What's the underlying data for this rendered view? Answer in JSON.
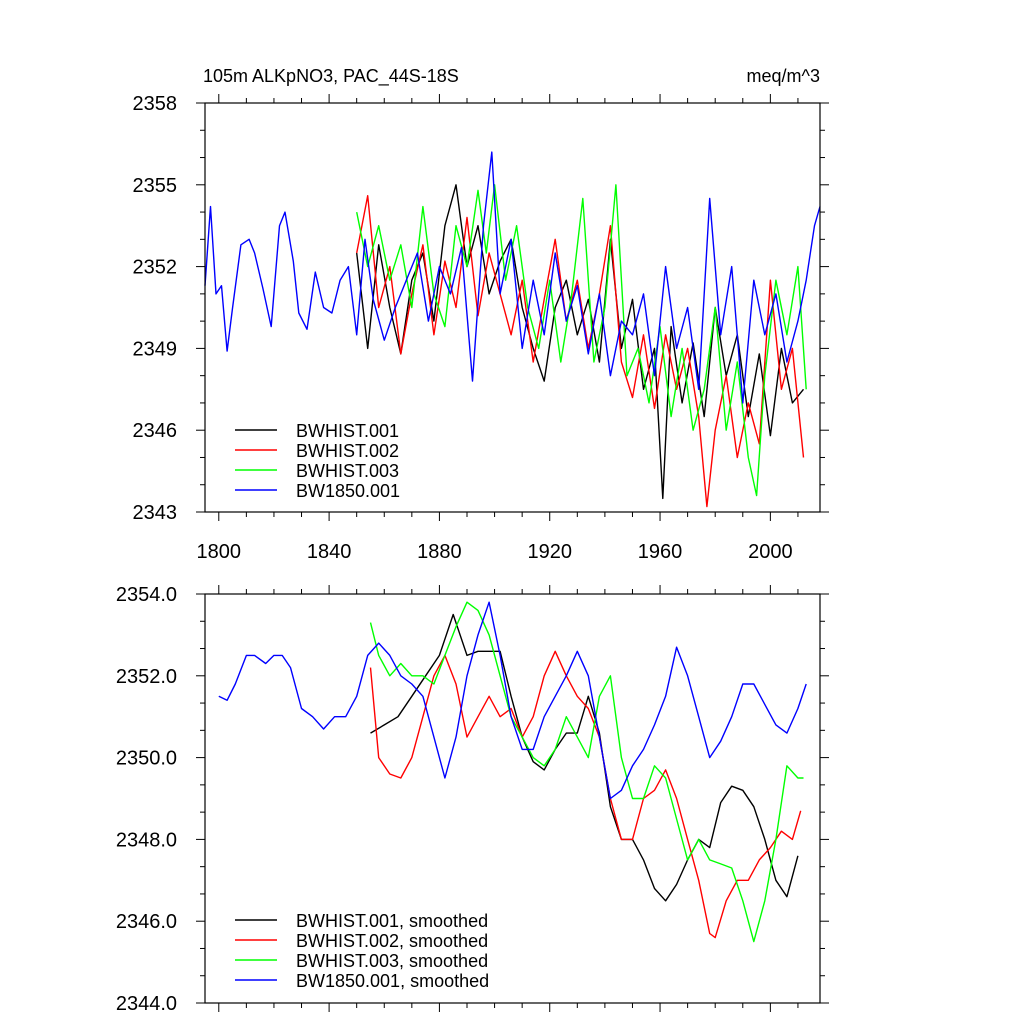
{
  "chart_data": [
    {
      "type": "line",
      "title": "105m ALKpNO3, PAC_44S-18S",
      "units": "meq/m^3",
      "xlabel": "",
      "ylabel": "",
      "xlim": [
        1795,
        2018
      ],
      "ylim": [
        2343,
        2358
      ],
      "x_ticks": [
        1800,
        1840,
        1880,
        1920,
        1960,
        2000
      ],
      "x_tick_labels": [
        "1800",
        "1840",
        "1880",
        "1920",
        "1960",
        "2000"
      ],
      "y_ticks": [
        2343,
        2346,
        2349,
        2352,
        2355,
        2358
      ],
      "y_tick_labels": [
        "2343",
        "2346",
        "2349",
        "2352",
        "2355",
        "2358"
      ],
      "legend_position": "bottom-left",
      "series": [
        {
          "name": "BWHIST.001",
          "color": "#000000",
          "x": [
            1850,
            1854,
            1858,
            1862,
            1866,
            1870,
            1874,
            1878,
            1882,
            1886,
            1890,
            1894,
            1898,
            1902,
            1906,
            1910,
            1914,
            1918,
            1922,
            1926,
            1930,
            1934,
            1938,
            1942,
            1946,
            1950,
            1954,
            1958,
            1961,
            1964,
            1968,
            1972,
            1976,
            1980,
            1984,
            1988,
            1992,
            1996,
            2000,
            2004,
            2008,
            2012
          ],
          "y": [
            2352.5,
            2349.0,
            2352.8,
            2350.5,
            2348.8,
            2351.5,
            2352.5,
            2350.0,
            2353.5,
            2355.0,
            2352.0,
            2353.5,
            2351.0,
            2352.2,
            2353.0,
            2350.5,
            2349.0,
            2347.8,
            2350.5,
            2351.5,
            2349.5,
            2350.8,
            2348.5,
            2353.0,
            2349.0,
            2350.8,
            2347.5,
            2349.0,
            2343.5,
            2349.8,
            2347.0,
            2349.2,
            2346.5,
            2350.5,
            2348.0,
            2349.5,
            2346.5,
            2348.8,
            2345.8,
            2349.0,
            2347.0,
            2347.5
          ]
        },
        {
          "name": "BWHIST.002",
          "color": "#ff0000",
          "x": [
            1850,
            1854,
            1858,
            1862,
            1866,
            1870,
            1874,
            1878,
            1882,
            1886,
            1890,
            1894,
            1898,
            1902,
            1906,
            1910,
            1914,
            1918,
            1922,
            1926,
            1930,
            1934,
            1938,
            1942,
            1946,
            1950,
            1954,
            1958,
            1962,
            1966,
            1970,
            1974,
            1977,
            1980,
            1984,
            1988,
            1992,
            1996,
            2000,
            2004,
            2008,
            2012
          ],
          "y": [
            2352.5,
            2354.6,
            2350.5,
            2352.0,
            2348.8,
            2351.0,
            2352.8,
            2349.5,
            2352.2,
            2350.5,
            2353.8,
            2350.2,
            2352.5,
            2351.0,
            2349.5,
            2351.5,
            2348.5,
            2350.8,
            2353.0,
            2350.0,
            2351.5,
            2349.0,
            2351.0,
            2353.5,
            2348.5,
            2347.2,
            2349.5,
            2346.8,
            2349.5,
            2347.5,
            2349.0,
            2346.5,
            2343.2,
            2346.0,
            2348.0,
            2345.0,
            2347.0,
            2345.5,
            2351.5,
            2347.5,
            2349.0,
            2345.0
          ]
        },
        {
          "name": "BWHIST.003",
          "color": "#00ff00",
          "x": [
            1850,
            1854,
            1858,
            1862,
            1866,
            1870,
            1874,
            1878,
            1882,
            1886,
            1890,
            1894,
            1897,
            1900,
            1904,
            1908,
            1912,
            1916,
            1920,
            1924,
            1928,
            1932,
            1936,
            1940,
            1944,
            1948,
            1952,
            1956,
            1960,
            1964,
            1968,
            1972,
            1976,
            1980,
            1984,
            1988,
            1992,
            1995,
            1998,
            2002,
            2006,
            2010,
            2013
          ],
          "y": [
            2354.0,
            2352.0,
            2353.5,
            2351.5,
            2352.8,
            2350.5,
            2354.2,
            2351.0,
            2349.8,
            2353.5,
            2352.0,
            2354.8,
            2352.5,
            2355.0,
            2351.5,
            2353.5,
            2350.5,
            2349.0,
            2351.5,
            2348.5,
            2351.0,
            2354.5,
            2348.5,
            2350.5,
            2355.0,
            2348.0,
            2349.0,
            2347.0,
            2349.8,
            2346.5,
            2349.0,
            2346.0,
            2347.5,
            2350.5,
            2346.0,
            2348.5,
            2345.0,
            2343.6,
            2348.0,
            2351.5,
            2349.5,
            2352.0,
            2347.5
          ]
        },
        {
          "name": "BW1850.001",
          "color": "#0000ff",
          "x": [
            1795,
            1797,
            1799,
            1801,
            1803,
            1805,
            1808,
            1811,
            1813,
            1816,
            1819,
            1822,
            1824,
            1827,
            1829,
            1832,
            1835,
            1838,
            1841,
            1844,
            1847,
            1850,
            1853,
            1856,
            1860,
            1864,
            1868,
            1872,
            1876,
            1880,
            1884,
            1888,
            1892,
            1896,
            1899,
            1902,
            1906,
            1910,
            1914,
            1918,
            1922,
            1926,
            1930,
            1934,
            1938,
            1942,
            1946,
            1950,
            1954,
            1958,
            1962,
            1966,
            1970,
            1974,
            1978,
            1982,
            1986,
            1990,
            1994,
            1998,
            2002,
            2006,
            2010,
            2013,
            2016,
            2018
          ],
          "y": [
            2351.3,
            2354.2,
            2351.0,
            2351.3,
            2348.9,
            2350.5,
            2352.8,
            2353.0,
            2352.5,
            2351.2,
            2349.8,
            2353.5,
            2354.0,
            2352.2,
            2350.3,
            2349.7,
            2351.8,
            2350.5,
            2350.3,
            2351.5,
            2352.0,
            2349.5,
            2353.0,
            2350.8,
            2349.3,
            2350.5,
            2351.5,
            2352.5,
            2350.0,
            2352.0,
            2351.0,
            2352.7,
            2347.8,
            2353.5,
            2356.2,
            2351.0,
            2353.0,
            2349.0,
            2351.5,
            2349.5,
            2352.5,
            2350.0,
            2351.3,
            2348.8,
            2351.0,
            2348.0,
            2350.0,
            2349.5,
            2351.0,
            2348.0,
            2352.0,
            2349.0,
            2350.5,
            2347.5,
            2354.5,
            2349.5,
            2352.0,
            2347.0,
            2351.5,
            2349.5,
            2351.0,
            2348.5,
            2350.0,
            2351.5,
            2353.5,
            2354.2
          ]
        }
      ]
    },
    {
      "type": "line",
      "title": "",
      "xlabel": "",
      "ylabel": "",
      "xlim": [
        1795,
        2018
      ],
      "ylim": [
        2344,
        2354
      ],
      "x_ticks": [
        1800,
        1840,
        1880,
        1920,
        1960,
        2000
      ],
      "y_ticks": [
        2344,
        2346,
        2348,
        2350,
        2352,
        2354
      ],
      "y_tick_labels": [
        "2344.0",
        "2346.0",
        "2348.0",
        "2350.0",
        "2352.0",
        "2354.0"
      ],
      "legend_position": "bottom-left",
      "series": [
        {
          "name": "BWHIST.001, smoothed",
          "color": "#000000",
          "x": [
            1855,
            1860,
            1865,
            1870,
            1875,
            1880,
            1885,
            1890,
            1894,
            1898,
            1902,
            1906,
            1910,
            1914,
            1918,
            1922,
            1926,
            1930,
            1934,
            1938,
            1942,
            1946,
            1950,
            1954,
            1958,
            1962,
            1966,
            1970,
            1974,
            1978,
            1982,
            1986,
            1990,
            1994,
            1998,
            2002,
            2006,
            2010
          ],
          "y": [
            2350.6,
            2350.8,
            2351.0,
            2351.5,
            2352.0,
            2352.5,
            2353.5,
            2352.5,
            2352.6,
            2352.6,
            2352.6,
            2351.5,
            2350.5,
            2349.9,
            2349.7,
            2350.2,
            2350.6,
            2350.6,
            2351.5,
            2350.6,
            2348.8,
            2348.0,
            2348.0,
            2347.5,
            2346.8,
            2346.5,
            2346.9,
            2347.5,
            2348.0,
            2347.8,
            2348.9,
            2349.3,
            2349.2,
            2348.8,
            2348.0,
            2347.0,
            2346.6,
            2347.6
          ]
        },
        {
          "name": "BWHIST.002, smoothed",
          "color": "#ff0000",
          "x": [
            1855,
            1858,
            1862,
            1866,
            1870,
            1874,
            1878,
            1882,
            1886,
            1890,
            1894,
            1898,
            1902,
            1906,
            1910,
            1914,
            1918,
            1922,
            1926,
            1930,
            1934,
            1938,
            1942,
            1946,
            1950,
            1954,
            1958,
            1962,
            1966,
            1970,
            1974,
            1978,
            1980,
            1984,
            1988,
            1992,
            1996,
            2000,
            2004,
            2008,
            2011
          ],
          "y": [
            2352.2,
            2350.0,
            2349.6,
            2349.5,
            2350.0,
            2351.0,
            2352.0,
            2352.5,
            2351.8,
            2350.5,
            2351.0,
            2351.5,
            2351.0,
            2351.2,
            2350.5,
            2351.0,
            2352.0,
            2352.6,
            2352.0,
            2351.5,
            2351.2,
            2350.5,
            2349.0,
            2348.0,
            2348.0,
            2349.0,
            2349.2,
            2349.7,
            2349.0,
            2348.0,
            2347.0,
            2345.7,
            2345.6,
            2346.5,
            2347.0,
            2347.0,
            2347.5,
            2347.8,
            2348.2,
            2348.0,
            2348.7
          ]
        },
        {
          "name": "BWHIST.003, smoothed",
          "color": "#00ff00",
          "x": [
            1855,
            1858,
            1862,
            1866,
            1870,
            1874,
            1878,
            1882,
            1886,
            1890,
            1894,
            1898,
            1902,
            1906,
            1910,
            1914,
            1918,
            1922,
            1926,
            1930,
            1934,
            1938,
            1942,
            1946,
            1950,
            1954,
            1958,
            1962,
            1966,
            1970,
            1974,
            1978,
            1982,
            1986,
            1990,
            1994,
            1998,
            2002,
            2006,
            2010,
            2012
          ],
          "y": [
            2353.3,
            2352.5,
            2352.0,
            2352.3,
            2352.0,
            2352.0,
            2351.8,
            2352.5,
            2353.2,
            2353.8,
            2353.6,
            2353.0,
            2352.0,
            2351.0,
            2350.5,
            2350.0,
            2349.8,
            2350.2,
            2351.0,
            2350.5,
            2350.0,
            2351.5,
            2352.0,
            2350.0,
            2349.0,
            2349.0,
            2349.8,
            2349.5,
            2348.5,
            2347.5,
            2348.0,
            2347.5,
            2347.4,
            2347.3,
            2346.5,
            2345.5,
            2346.5,
            2348.0,
            2349.8,
            2349.5,
            2349.5
          ]
        },
        {
          "name": "BW1850.001, smoothed",
          "color": "#0000ff",
          "x": [
            1800,
            1803,
            1806,
            1810,
            1813,
            1817,
            1820,
            1823,
            1826,
            1830,
            1834,
            1838,
            1842,
            1846,
            1850,
            1854,
            1858,
            1862,
            1866,
            1870,
            1874,
            1878,
            1882,
            1886,
            1890,
            1894,
            1898,
            1902,
            1906,
            1910,
            1914,
            1918,
            1922,
            1926,
            1930,
            1934,
            1938,
            1942,
            1946,
            1950,
            1954,
            1958,
            1962,
            1966,
            1970,
            1974,
            1978,
            1982,
            1986,
            1990,
            1994,
            1998,
            2002,
            2006,
            2010,
            2013
          ],
          "y": [
            2351.5,
            2351.4,
            2351.8,
            2352.5,
            2352.5,
            2352.3,
            2352.5,
            2352.5,
            2352.2,
            2351.2,
            2351.0,
            2350.7,
            2351.0,
            2351.0,
            2351.5,
            2352.5,
            2352.8,
            2352.5,
            2352.0,
            2351.8,
            2351.5,
            2350.5,
            2349.5,
            2350.5,
            2352.0,
            2353.0,
            2353.8,
            2352.5,
            2351.0,
            2350.2,
            2350.2,
            2351.0,
            2351.5,
            2352.0,
            2352.6,
            2352.0,
            2350.5,
            2349.0,
            2349.2,
            2349.8,
            2350.2,
            2350.8,
            2351.5,
            2352.7,
            2352.0,
            2351.0,
            2350.0,
            2350.4,
            2351.0,
            2351.8,
            2351.8,
            2351.3,
            2350.8,
            2350.6,
            2351.2,
            2351.8
          ]
        }
      ]
    }
  ]
}
